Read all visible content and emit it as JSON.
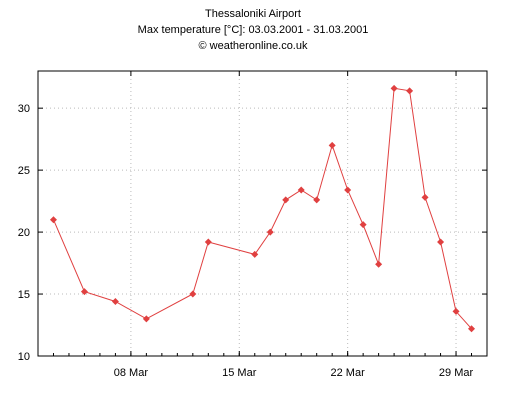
{
  "chart_data": {
    "type": "line",
    "title": "Thessaloniki Airport",
    "subtitle": "Max temperature [°C]: 03.03.2001 - 31.03.2001",
    "credit": "© weatheronline.co.uk",
    "xlabel": "",
    "ylabel": "",
    "xlim": [
      "2001-03-02",
      "2001-03-31"
    ],
    "ylim": [
      10,
      33
    ],
    "grid": true,
    "series_color": "#e04040",
    "x_ticks": [
      {
        "date": "2001-03-08",
        "label": "08 Mar"
      },
      {
        "date": "2001-03-15",
        "label": "15 Mar"
      },
      {
        "date": "2001-03-22",
        "label": "22 Mar"
      },
      {
        "date": "2001-03-29",
        "label": "29 Mar"
      }
    ],
    "y_ticks": [
      10,
      15,
      20,
      25,
      30
    ],
    "series": [
      {
        "points": [
          {
            "x": "2001-03-03",
            "y": 21.0
          },
          {
            "x": "2001-03-05",
            "y": 15.2
          },
          {
            "x": "2001-03-07",
            "y": 14.4
          },
          {
            "x": "2001-03-09",
            "y": 13.0
          },
          {
            "x": "2001-03-12",
            "y": 15.0
          },
          {
            "x": "2001-03-13",
            "y": 19.2
          },
          {
            "x": "2001-03-16",
            "y": 18.2
          },
          {
            "x": "2001-03-17",
            "y": 20.0
          },
          {
            "x": "2001-03-18",
            "y": 22.6
          },
          {
            "x": "2001-03-19",
            "y": 23.4
          },
          {
            "x": "2001-03-20",
            "y": 22.6
          },
          {
            "x": "2001-03-21",
            "y": 27.0
          },
          {
            "x": "2001-03-22",
            "y": 23.4
          },
          {
            "x": "2001-03-23",
            "y": 20.6
          },
          {
            "x": "2001-03-24",
            "y": 17.4
          },
          {
            "x": "2001-03-25",
            "y": 31.6
          },
          {
            "x": "2001-03-26",
            "y": 31.4
          },
          {
            "x": "2001-03-27",
            "y": 22.8
          },
          {
            "x": "2001-03-28",
            "y": 19.2
          },
          {
            "x": "2001-03-29",
            "y": 13.6
          },
          {
            "x": "2001-03-30",
            "y": 12.2
          }
        ]
      }
    ]
  }
}
